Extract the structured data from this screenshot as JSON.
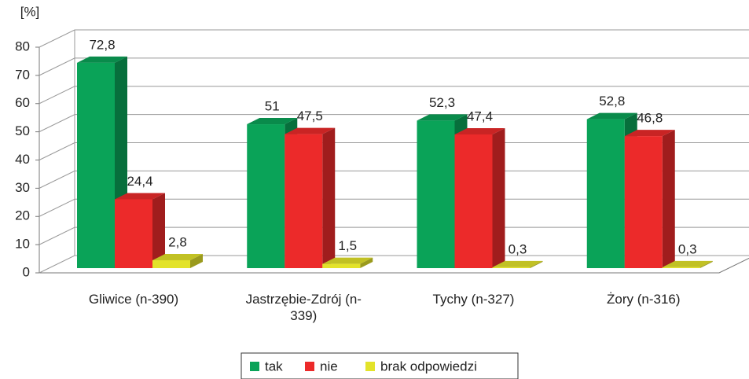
{
  "chart_data": {
    "type": "bar3d",
    "y_axis_label": "[%]",
    "categories": [
      "Gliwice (n-390)",
      "Jastrzębie-Zdrój (n-339)",
      "Tychy (n-327)",
      "Żory (n-316)"
    ],
    "series": [
      {
        "name": "tak",
        "color": "#0aa358",
        "values": [
          72.8,
          51,
          52.3,
          52.8
        ],
        "value_labels": [
          "72,8",
          "51",
          "52,3",
          "52,8"
        ]
      },
      {
        "name": "nie",
        "color": "#ec2a2a",
        "values": [
          24.4,
          47.5,
          47.4,
          46.8
        ],
        "value_labels": [
          "24,4",
          "47,5",
          "47,4",
          "46,8"
        ]
      },
      {
        "name": "brak odpowiedzi",
        "color": "#e3e32a",
        "values": [
          2.8,
          1.5,
          0.3,
          0.3
        ],
        "value_labels": [
          "2,8",
          "1,5",
          "0,3",
          "0,3"
        ]
      }
    ],
    "ylim": [
      0,
      80
    ],
    "yticks": [
      0,
      10,
      20,
      30,
      40,
      50,
      60,
      70,
      80
    ],
    "grid": true,
    "legend": "bottom"
  }
}
